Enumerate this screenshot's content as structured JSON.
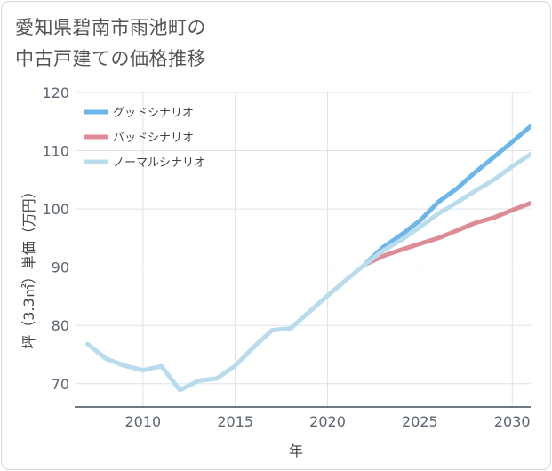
{
  "title_lines": [
    "愛知県碧南市雨池町の",
    "中古戸建ての価格推移"
  ],
  "chart_data": {
    "type": "line",
    "title": "愛知県碧南市雨池町の中古戸建ての価格推移",
    "xlabel": "年",
    "ylabel": "坪（3.3㎡）単価（万円）",
    "xlim": [
      2006.3,
      2031
    ],
    "ylim": [
      66,
      120
    ],
    "xticks": [
      2010,
      2015,
      2020,
      2025,
      2030
    ],
    "yticks": [
      70,
      80,
      90,
      100,
      110,
      120
    ],
    "grid": true,
    "legend_position": "top-left",
    "series": [
      {
        "name": "グッドシナリオ",
        "color": "#6cb6ea",
        "x": [
          2022,
          2023,
          2024,
          2025,
          2026,
          2027,
          2028,
          2029,
          2030,
          2031
        ],
        "y": [
          90.4,
          93.4,
          95.6,
          98.0,
          101.2,
          103.5,
          106.3,
          108.9,
          111.5,
          114.2
        ]
      },
      {
        "name": "バッドシナリオ",
        "color": "#dd8c96",
        "x": [
          2022,
          2023,
          2024,
          2025,
          2026,
          2027,
          2028,
          2029,
          2030,
          2031
        ],
        "y": [
          90.4,
          91.9,
          93.0,
          94.0,
          95.0,
          96.3,
          97.6,
          98.5,
          99.8,
          101.0
        ]
      },
      {
        "name": "ノーマルシナリオ",
        "color": "#b8dcec",
        "x": [
          2007,
          2008,
          2009,
          2010,
          2011,
          2012,
          2013,
          2014,
          2015,
          2016,
          2017,
          2018,
          2019,
          2020,
          2021,
          2022,
          2023,
          2024,
          2025,
          2026,
          2027,
          2028,
          2029,
          2030,
          2031
        ],
        "y": [
          76.8,
          74.3,
          73.1,
          72.3,
          73.0,
          68.9,
          70.5,
          70.9,
          73.1,
          76.3,
          79.2,
          79.5,
          82.3,
          85.1,
          87.8,
          90.4,
          92.8,
          94.7,
          96.9,
          99.2,
          101.1,
          103.1,
          105.0,
          107.3,
          109.4
        ]
      }
    ]
  }
}
